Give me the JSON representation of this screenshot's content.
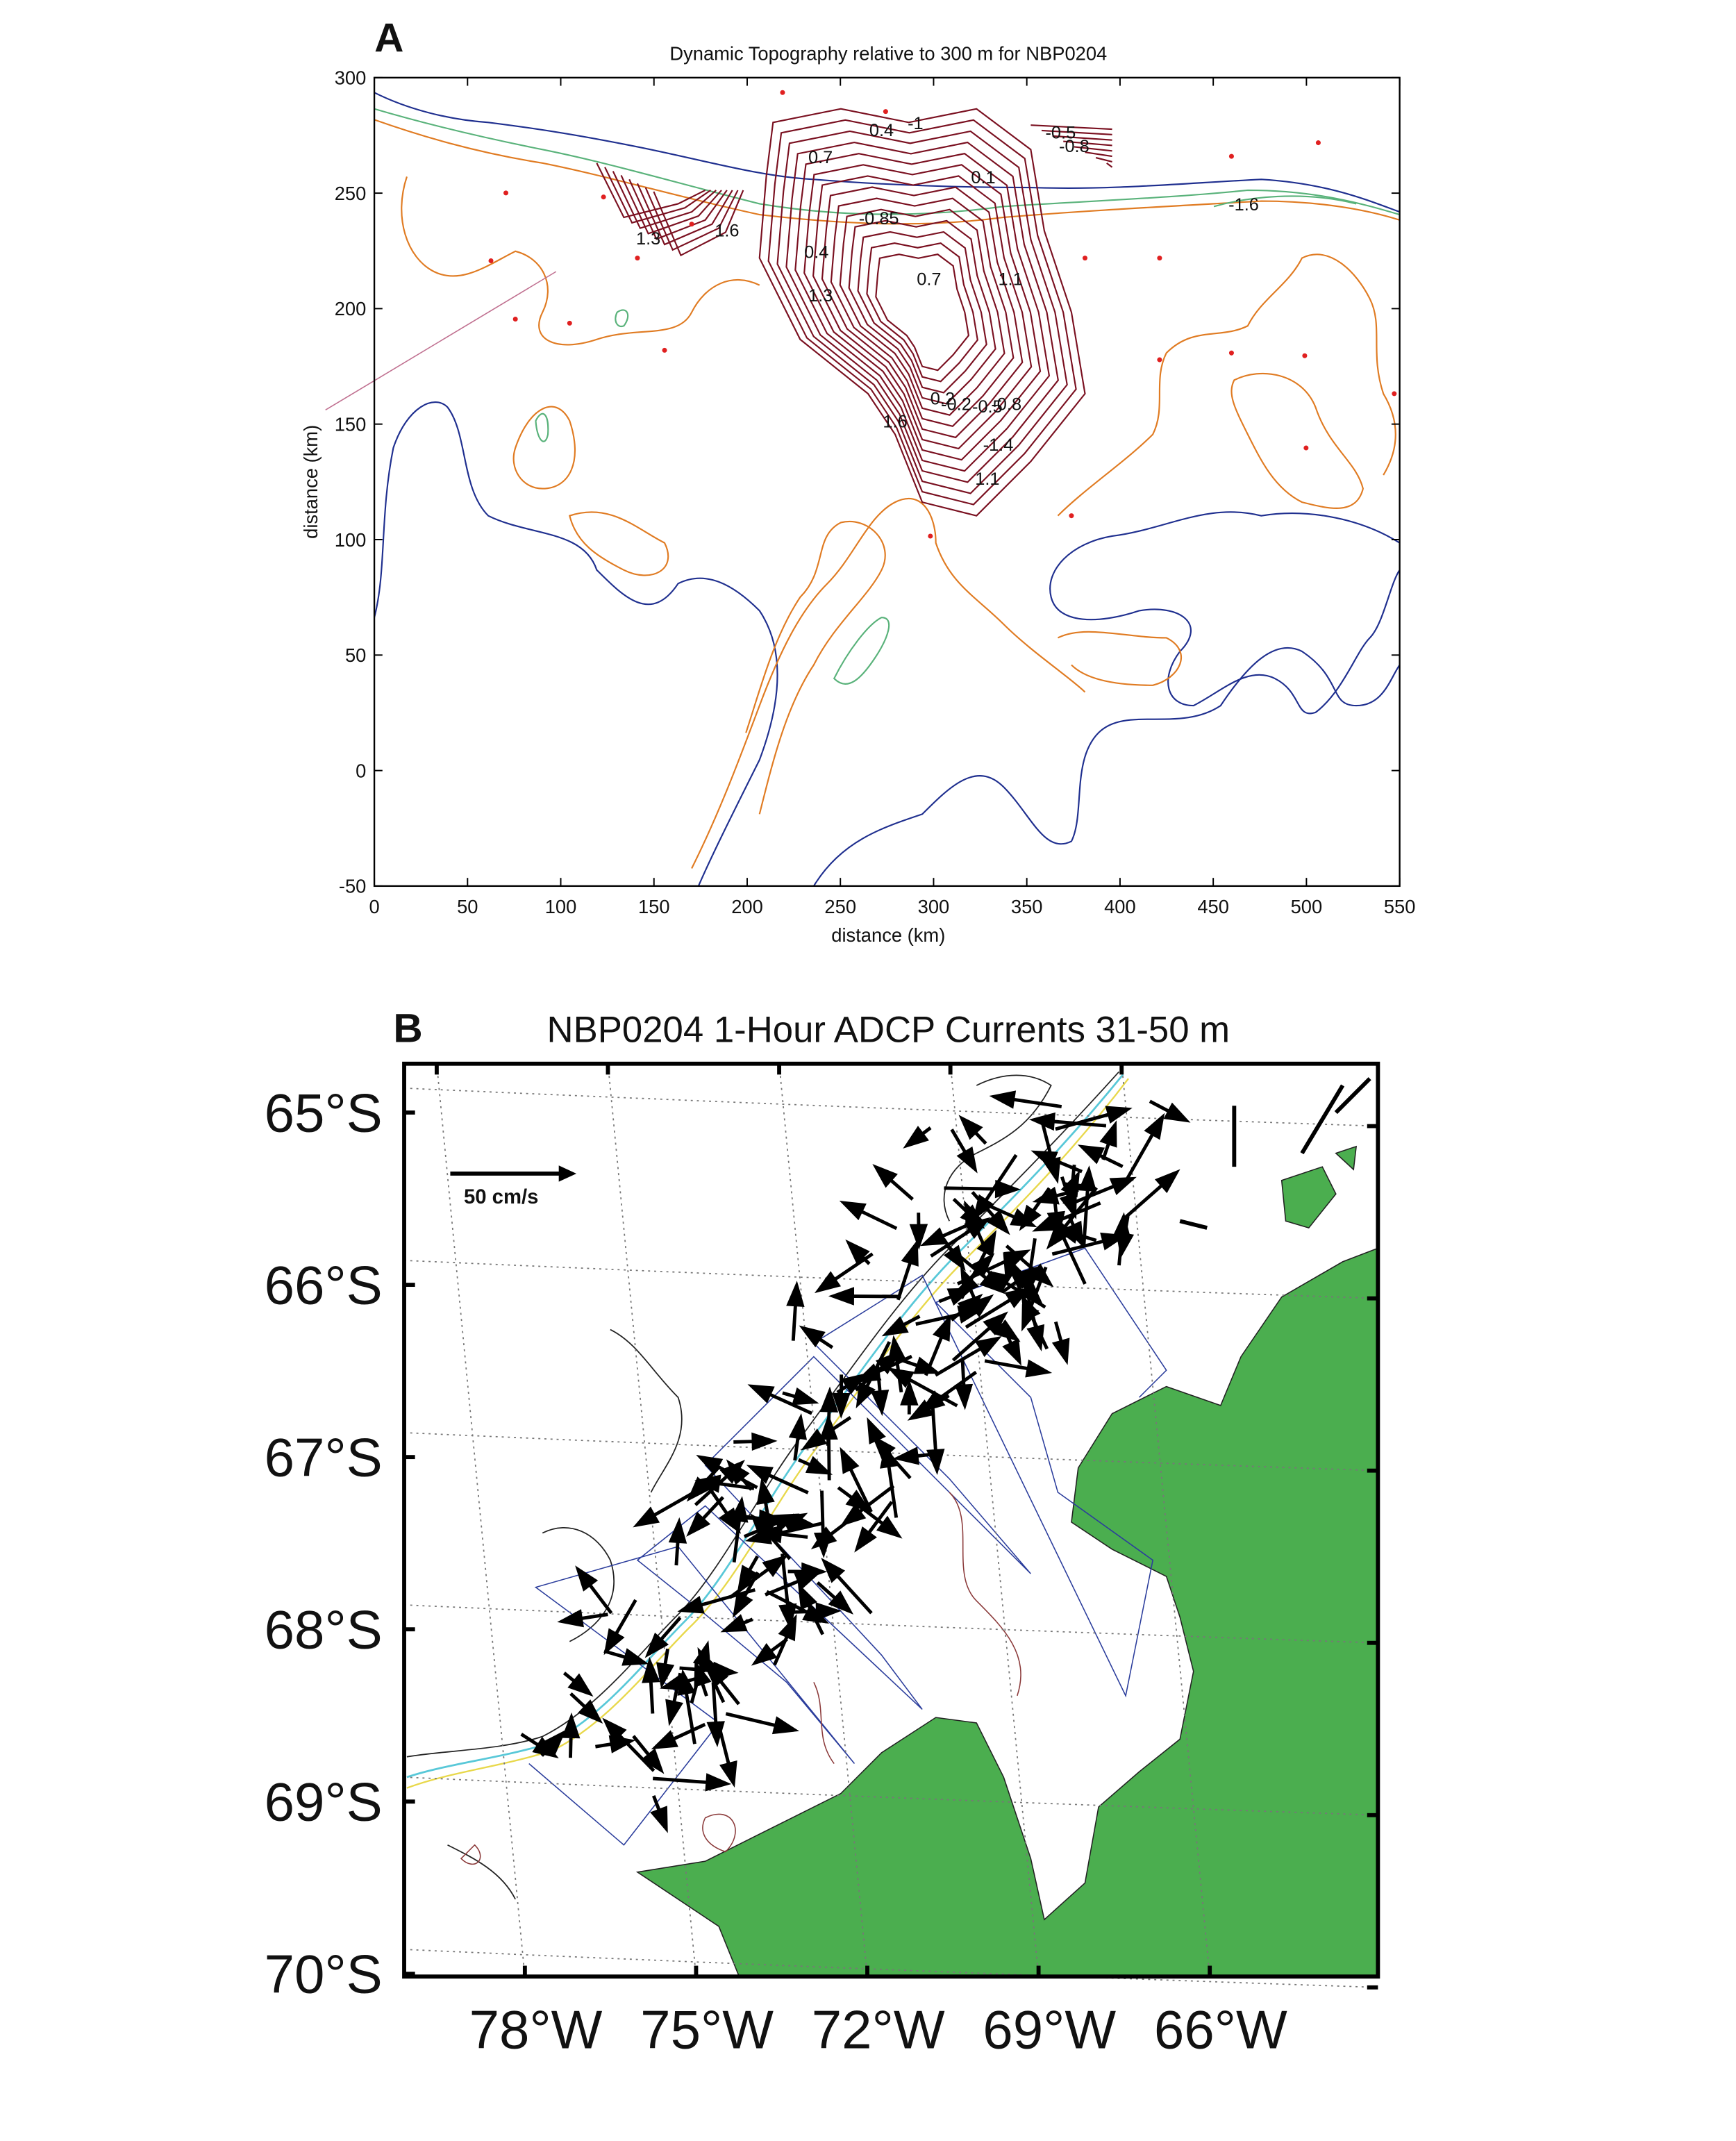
{
  "chart_data": [
    {
      "type": "contour",
      "label": "A",
      "title": "Dynamic Topography relative to 300 m  for NBP0204",
      "xlabel": "distance (km)",
      "ylabel": "distance (km)",
      "xlim": [
        0,
        550
      ],
      "ylim": [
        -50,
        300
      ],
      "xticks": [
        0,
        50,
        100,
        150,
        200,
        250,
        300,
        350,
        400,
        450,
        500,
        550
      ],
      "yticks": [
        -50,
        0,
        50,
        100,
        150,
        200,
        250,
        300
      ],
      "contour_labels": [
        1.3,
        1.6,
        0.7,
        0.4,
        1.3,
        -0.85,
        0.7,
        1.1,
        -1.6,
        -0.8,
        -1.4,
        1.1,
        1.6,
        0.1,
        -0.5,
        -0.8,
        0.4,
        -1,
        -0.2,
        -0.5,
        0.2
      ]
    },
    {
      "type": "map",
      "label": "B",
      "title": "NBP0204 1-Hour ADCP Currents 31-50 m",
      "lat_ticks": [
        {
          "value": -65,
          "label": "65°S"
        },
        {
          "value": -66,
          "label": "66°S"
        },
        {
          "value": -67,
          "label": "67°S"
        },
        {
          "value": -68,
          "label": "68°S"
        },
        {
          "value": -69,
          "label": "69°S"
        },
        {
          "value": -70,
          "label": "70°S"
        }
      ],
      "lon_ticks": [
        {
          "value": -78,
          "label": "78°W"
        },
        {
          "value": -75,
          "label": "75°W"
        },
        {
          "value": -72,
          "label": "72°W"
        },
        {
          "value": -69,
          "label": "69°W"
        },
        {
          "value": -66,
          "label": "66°W"
        }
      ],
      "scale_label": "50 cm/s",
      "land_color": "#4bae4f"
    }
  ]
}
